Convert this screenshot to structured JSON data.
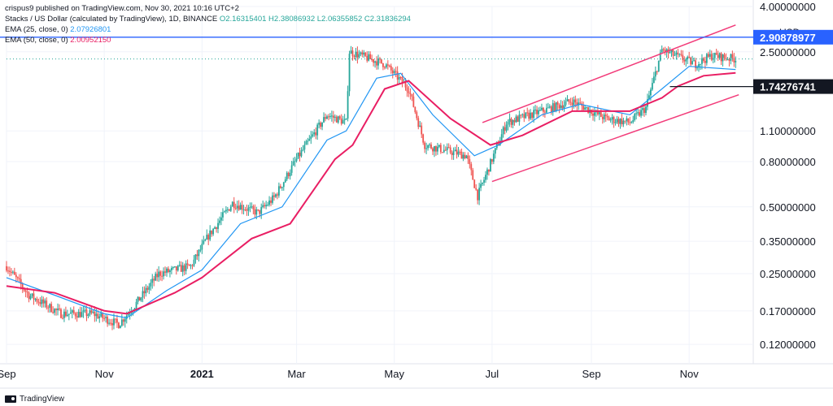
{
  "header": {
    "attribution": "crispus9 published on TradingView.com, Nov 30, 2021 10:16 UTC+2",
    "symbol_line": "Stacks / US Dollar (calculated by TradingView), 1D, BINANCE",
    "ohlc": {
      "o": "O2.16315401",
      "h": "H2.38086932",
      "l": "L2.06355852",
      "c": "C2.31836294"
    },
    "ema25": {
      "label": "EMA (25, close, 0)",
      "value": "2.07926801"
    },
    "ema50": {
      "label": "EMA (50, close, 0)",
      "value": "2.00952150"
    }
  },
  "footer": {
    "brand": "TradingView"
  },
  "colors": {
    "up": "#26a69a",
    "down": "#ef5350",
    "ema25": "#2196f3",
    "ema50": "#e91e63",
    "channel": "#f23c7a",
    "resistance": "#2962ff",
    "support": "#131722"
  },
  "chart_data": {
    "type": "candlestick",
    "y_scale": "log",
    "ylim": [
      0.105,
      4.0
    ],
    "x_start": "2020-09-01",
    "x_end": "2021-12-10",
    "currency": "USD",
    "y_ticks": [
      {
        "value": 4.0,
        "label": "4.00000000"
      },
      {
        "value": 2.5,
        "label": "2.50000000"
      },
      {
        "value": 1.1,
        "label": "1.10000000"
      },
      {
        "value": 0.8,
        "label": "0.80000000"
      },
      {
        "value": 0.5,
        "label": "0.50000000"
      },
      {
        "value": 0.35,
        "label": "0.35000000"
      },
      {
        "value": 0.25,
        "label": "0.25000000"
      },
      {
        "value": 0.17,
        "label": "0.17000000"
      },
      {
        "value": 0.12,
        "label": "0.12000000"
      }
    ],
    "x_ticks": [
      {
        "date": "2020-09-01",
        "label": "Sep",
        "bold": false
      },
      {
        "date": "2020-11-01",
        "label": "Nov",
        "bold": false
      },
      {
        "date": "2021-01-01",
        "label": "2021",
        "bold": true
      },
      {
        "date": "2021-03-01",
        "label": "Mar",
        "bold": false
      },
      {
        "date": "2021-05-01",
        "label": "May",
        "bold": false
      },
      {
        "date": "2021-07-01",
        "label": "Jul",
        "bold": false
      },
      {
        "date": "2021-09-01",
        "label": "Sep",
        "bold": false
      },
      {
        "date": "2021-11-01",
        "label": "Nov",
        "bold": false
      }
    ],
    "price_path": [
      [
        "2020-09-01",
        0.27
      ],
      [
        "2020-09-15",
        0.2
      ],
      [
        "2020-10-05",
        0.165
      ],
      [
        "2020-10-25",
        0.165
      ],
      [
        "2020-11-10",
        0.148
      ],
      [
        "2020-11-20",
        0.18
      ],
      [
        "2020-12-05",
        0.25
      ],
      [
        "2020-12-25",
        0.27
      ],
      [
        "2021-01-05",
        0.37
      ],
      [
        "2021-01-20",
        0.52
      ],
      [
        "2021-02-05",
        0.47
      ],
      [
        "2021-02-15",
        0.55
      ],
      [
        "2021-03-01",
        0.82
      ],
      [
        "2021-03-20",
        1.3
      ],
      [
        "2021-04-01",
        1.2
      ],
      [
        "2021-04-03",
        2.5
      ],
      [
        "2021-04-25",
        2.2
      ],
      [
        "2021-05-10",
        1.7
      ],
      [
        "2021-05-20",
        0.95
      ],
      [
        "2021-06-15",
        0.85
      ],
      [
        "2021-06-22",
        0.56
      ],
      [
        "2021-07-10",
        1.2
      ],
      [
        "2021-08-01",
        1.35
      ],
      [
        "2021-08-20",
        1.5
      ],
      [
        "2021-09-10",
        1.25
      ],
      [
        "2021-09-25",
        1.2
      ],
      [
        "2021-10-05",
        1.4
      ],
      [
        "2021-10-15",
        2.55
      ],
      [
        "2021-11-05",
        2.2
      ],
      [
        "2021-11-15",
        2.4
      ],
      [
        "2021-11-30",
        2.32
      ]
    ],
    "ema25": [
      [
        "2020-09-01",
        0.24
      ],
      [
        "2020-10-01",
        0.2
      ],
      [
        "2020-11-01",
        0.165
      ],
      [
        "2020-11-15",
        0.158
      ],
      [
        "2020-12-10",
        0.21
      ],
      [
        "2021-01-01",
        0.26
      ],
      [
        "2021-01-25",
        0.42
      ],
      [
        "2021-02-20",
        0.5
      ],
      [
        "2021-03-20",
        1.0
      ],
      [
        "2021-04-01",
        1.1
      ],
      [
        "2021-04-20",
        1.9
      ],
      [
        "2021-05-05",
        2.0
      ],
      [
        "2021-05-25",
        1.3
      ],
      [
        "2021-06-20",
        0.85
      ],
      [
        "2021-07-05",
        0.95
      ],
      [
        "2021-08-01",
        1.3
      ],
      [
        "2021-08-25",
        1.45
      ],
      [
        "2021-09-25",
        1.3
      ],
      [
        "2021-10-15",
        1.7
      ],
      [
        "2021-11-01",
        2.15
      ],
      [
        "2021-11-30",
        2.08
      ]
    ],
    "ema50": [
      [
        "2020-09-01",
        0.22
      ],
      [
        "2020-10-01",
        0.205
      ],
      [
        "2020-11-01",
        0.17
      ],
      [
        "2020-11-15",
        0.165
      ],
      [
        "2020-12-15",
        0.205
      ],
      [
        "2021-01-01",
        0.24
      ],
      [
        "2021-02-01",
        0.36
      ],
      [
        "2021-02-25",
        0.42
      ],
      [
        "2021-03-25",
        0.82
      ],
      [
        "2021-04-05",
        0.95
      ],
      [
        "2021-04-25",
        1.7
      ],
      [
        "2021-05-10",
        1.85
      ],
      [
        "2021-06-05",
        1.25
      ],
      [
        "2021-06-30",
        0.95
      ],
      [
        "2021-07-20",
        1.05
      ],
      [
        "2021-08-20",
        1.35
      ],
      [
        "2021-09-25",
        1.35
      ],
      [
        "2021-10-15",
        1.55
      ],
      [
        "2021-10-25",
        1.75
      ],
      [
        "2021-11-10",
        1.95
      ],
      [
        "2021-11-30",
        2.01
      ]
    ],
    "channel": {
      "upper": [
        [
          "2021-06-25",
          1.2
        ],
        [
          "2021-11-30",
          3.3
        ]
      ],
      "lower": [
        [
          "2021-07-01",
          0.65
        ],
        [
          "2021-12-02",
          1.6
        ]
      ]
    },
    "resistance": {
      "value": 2.90878977,
      "label": "2.90878977"
    },
    "support": {
      "value": 1.74276741,
      "label": "1.74276741",
      "from": "2021-10-20"
    }
  }
}
